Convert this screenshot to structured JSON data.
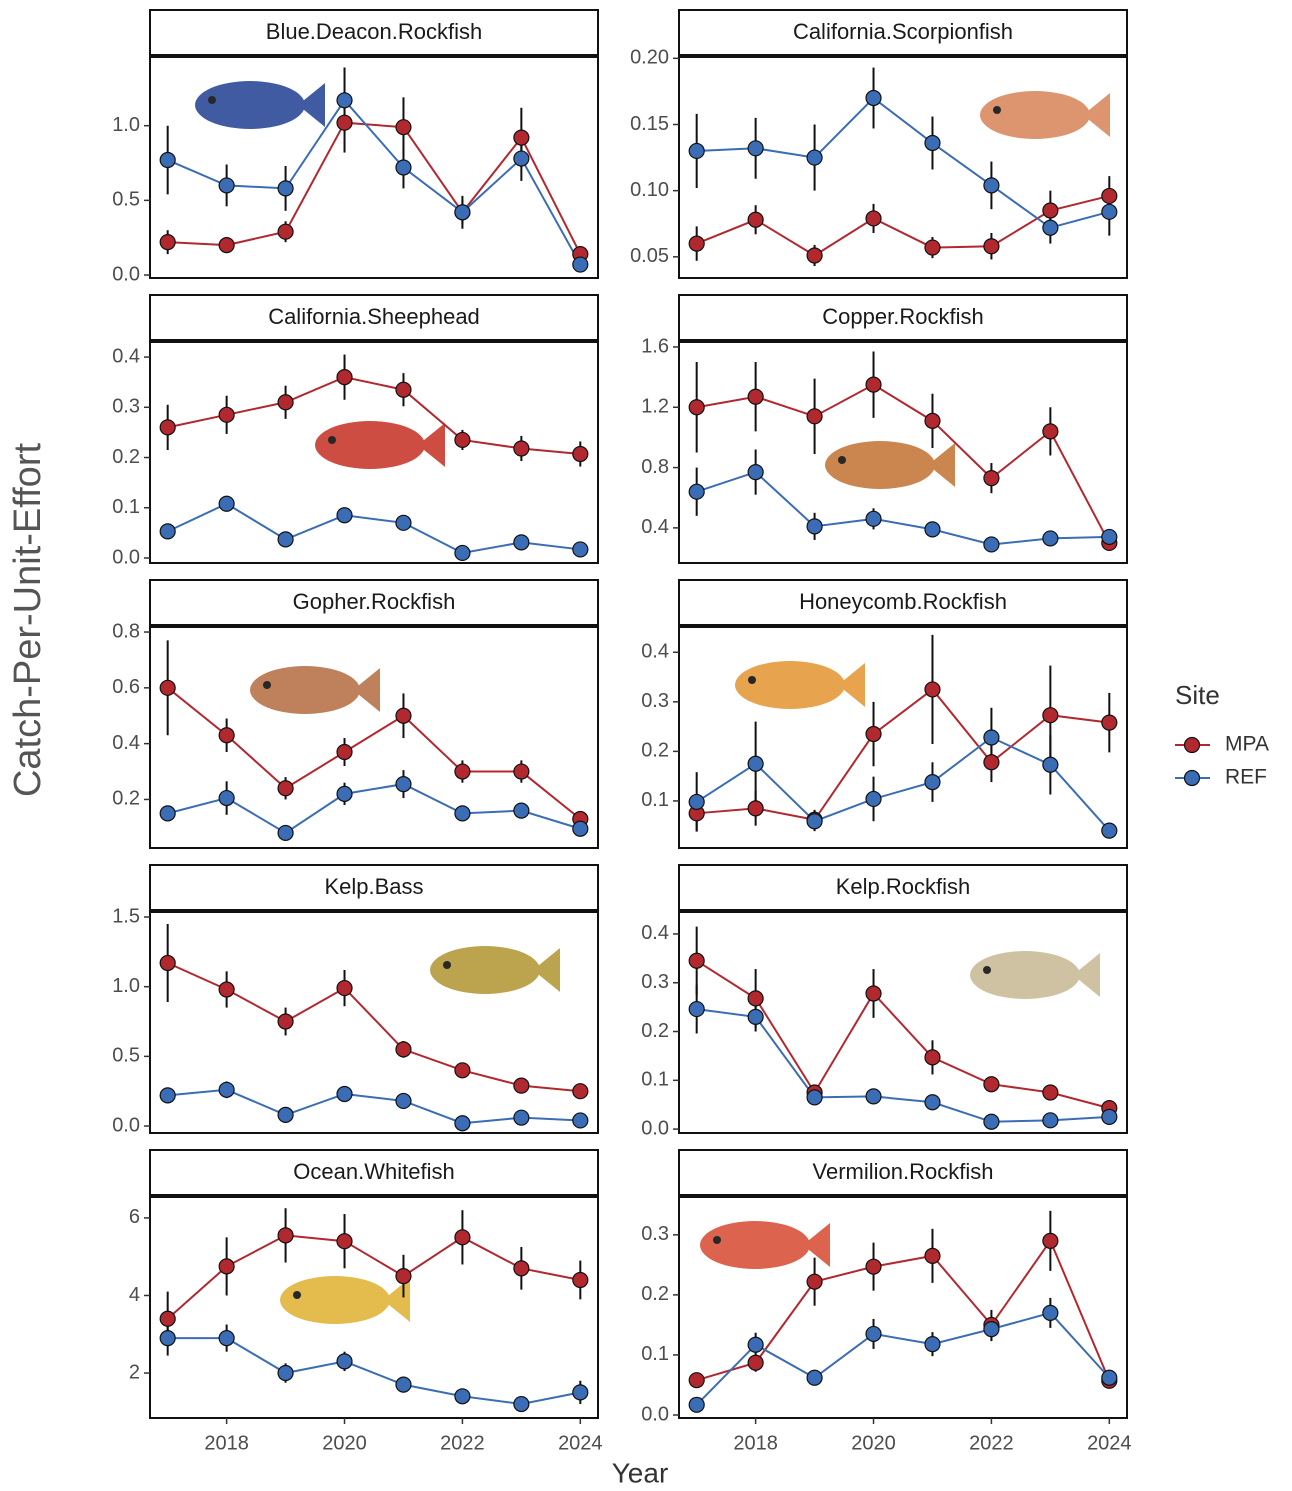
{
  "ylabel": "Catch-Per-Unit-Effort",
  "xlabel": "Year",
  "legend_title": "Site",
  "chart_data": [
    {
      "type": "line",
      "title": "Blue.Deacon.Rockfish",
      "x": [
        2017,
        2018,
        2019,
        2020,
        2021,
        2022,
        2023,
        2024
      ],
      "xlim": [
        2016.7,
        2024.3
      ],
      "ylim": [
        -0.02,
        1.46
      ],
      "yticks": [
        {
          "value": 0,
          "label": "0.0"
        },
        0.5,
        {
          "value": 1,
          "label": "1.0"
        }
      ],
      "series": [
        {
          "name": "MPA",
          "color": "#b2282f",
          "values": [
            0.22,
            0.2,
            0.29,
            1.02,
            0.99,
            0.42,
            0.92,
            0.14
          ],
          "errors": [
            0.08,
            0.03,
            0.07,
            0.2,
            0.2,
            0.08,
            0.2,
            0.04
          ]
        },
        {
          "name": "REF",
          "color": "#3a6db5",
          "values": [
            0.77,
            0.6,
            0.58,
            1.17,
            0.72,
            0.42,
            0.78,
            0.07
          ],
          "errors": [
            0.23,
            0.14,
            0.15,
            0.22,
            0.14,
            0.11,
            0.15,
            0.03
          ]
        }
      ]
    },
    {
      "type": "line",
      "title": "California.Scorpionfish",
      "x": [
        2017,
        2018,
        2019,
        2020,
        2021,
        2022,
        2023,
        2024
      ],
      "xlim": [
        2016.7,
        2024.3
      ],
      "ylim": [
        0.034,
        0.201
      ],
      "yticks": [
        0.05,
        {
          "value": 0.1,
          "label": "0.10"
        },
        0.15,
        {
          "value": 0.2,
          "label": "0.20"
        }
      ],
      "series": [
        {
          "name": "MPA",
          "color": "#b2282f",
          "values": [
            0.06,
            0.078,
            0.051,
            0.079,
            0.057,
            0.058,
            0.085,
            0.096
          ],
          "errors": [
            0.013,
            0.011,
            0.008,
            0.011,
            0.008,
            0.01,
            0.015,
            0.015
          ]
        },
        {
          "name": "REF",
          "color": "#3a6db5",
          "values": [
            0.13,
            0.132,
            0.125,
            0.17,
            0.136,
            0.104,
            0.072,
            0.084
          ],
          "errors": [
            0.028,
            0.023,
            0.025,
            0.023,
            0.02,
            0.018,
            0.012,
            0.018
          ]
        }
      ]
    },
    {
      "type": "line",
      "title": "California.Sheephead",
      "x": [
        2017,
        2018,
        2019,
        2020,
        2021,
        2022,
        2023,
        2024
      ],
      "xlim": [
        2016.7,
        2024.3
      ],
      "ylim": [
        -0.01,
        0.43
      ],
      "yticks": [
        {
          "value": 0,
          "label": "0.0"
        },
        0.1,
        0.2,
        0.3,
        0.4
      ],
      "series": [
        {
          "name": "MPA",
          "color": "#b2282f",
          "values": [
            0.26,
            0.285,
            0.31,
            0.36,
            0.335,
            0.235,
            0.218,
            0.207
          ],
          "errors": [
            0.045,
            0.038,
            0.033,
            0.045,
            0.033,
            0.02,
            0.025,
            0.025
          ]
        },
        {
          "name": "REF",
          "color": "#3a6db5",
          "values": [
            0.053,
            0.108,
            0.037,
            0.085,
            0.07,
            0.01,
            0.031,
            0.017
          ],
          "errors": [
            0.005,
            0.008,
            0.005,
            0.008,
            0.007,
            0.004,
            0.005,
            0.004
          ]
        }
      ]
    },
    {
      "type": "line",
      "title": "Copper.Rockfish",
      "x": [
        2017,
        2018,
        2019,
        2020,
        2021,
        2022,
        2023,
        2024
      ],
      "xlim": [
        2016.7,
        2024.3
      ],
      "ylim": [
        0.167,
        1.633
      ],
      "yticks": [
        0.4,
        0.8,
        1.2,
        1.6
      ],
      "series": [
        {
          "name": "MPA",
          "color": "#b2282f",
          "values": [
            1.2,
            1.27,
            1.14,
            1.35,
            1.11,
            0.73,
            1.04,
            0.3
          ],
          "errors": [
            0.3,
            0.23,
            0.25,
            0.22,
            0.18,
            0.1,
            0.16,
            0.04
          ]
        },
        {
          "name": "REF",
          "color": "#3a6db5",
          "values": [
            0.64,
            0.77,
            0.41,
            0.46,
            0.39,
            0.29,
            0.33,
            0.34
          ],
          "errors": [
            0.16,
            0.15,
            0.09,
            0.07,
            0.05,
            0.04,
            0.04,
            0.05
          ]
        }
      ]
    },
    {
      "type": "line",
      "title": "Gopher.Rockfish",
      "x": [
        2017,
        2018,
        2019,
        2020,
        2021,
        2022,
        2023,
        2024
      ],
      "xlim": [
        2016.7,
        2024.3
      ],
      "ylim": [
        0.026,
        0.818
      ],
      "yticks": [
        0.2,
        0.4,
        0.6,
        0.8
      ],
      "series": [
        {
          "name": "MPA",
          "color": "#b2282f",
          "values": [
            0.6,
            0.43,
            0.24,
            0.37,
            0.5,
            0.3,
            0.3,
            0.13
          ],
          "errors": [
            0.17,
            0.06,
            0.04,
            0.05,
            0.08,
            0.04,
            0.04,
            0.02
          ]
        },
        {
          "name": "REF",
          "color": "#3a6db5",
          "values": [
            0.15,
            0.205,
            0.08,
            0.22,
            0.255,
            0.15,
            0.16,
            0.095
          ],
          "errors": [
            0.02,
            0.06,
            0.02,
            0.04,
            0.05,
            0.02,
            0.02,
            0.02
          ]
        }
      ]
    },
    {
      "type": "line",
      "title": "Honeycomb.Rockfish",
      "x": [
        2017,
        2018,
        2019,
        2020,
        2021,
        2022,
        2023,
        2024
      ],
      "xlim": [
        2016.7,
        2024.3
      ],
      "ylim": [
        0.005,
        0.451
      ],
      "yticks": [
        0.1,
        0.2,
        0.3,
        0.4
      ],
      "series": [
        {
          "name": "MPA",
          "color": "#b2282f",
          "values": [
            0.075,
            0.085,
            0.062,
            0.235,
            0.325,
            0.178,
            0.273,
            0.258
          ],
          "errors": [
            0.035,
            0.035,
            0.02,
            0.065,
            0.11,
            0.04,
            0.1,
            0.06
          ]
        },
        {
          "name": "REF",
          "color": "#3a6db5",
          "values": [
            0.098,
            0.175,
            0.059,
            0.104,
            0.138,
            0.228,
            0.173,
            0.04
          ],
          "errors": [
            0.06,
            0.085,
            0.02,
            0.045,
            0.04,
            0.06,
            0.06,
            0.008
          ]
        }
      ]
    },
    {
      "type": "line",
      "title": "Kelp.Bass",
      "x": [
        2017,
        2018,
        2019,
        2020,
        2021,
        2022,
        2023,
        2024
      ],
      "xlim": [
        2016.7,
        2024.3
      ],
      "ylim": [
        -0.05,
        1.536
      ],
      "yticks": [
        {
          "value": 0,
          "label": "0.0"
        },
        0.5,
        {
          "value": 1,
          "label": "1.0"
        },
        1.5
      ],
      "series": [
        {
          "name": "MPA",
          "color": "#b2282f",
          "values": [
            1.17,
            0.98,
            0.75,
            0.99,
            0.55,
            0.4,
            0.29,
            0.25
          ],
          "errors": [
            0.28,
            0.13,
            0.1,
            0.13,
            0.06,
            0.04,
            0.04,
            0.03
          ]
        },
        {
          "name": "REF",
          "color": "#3a6db5",
          "values": [
            0.22,
            0.26,
            0.08,
            0.23,
            0.18,
            0.02,
            0.06,
            0.04
          ],
          "errors": [
            0.05,
            0.06,
            0.03,
            0.05,
            0.04,
            0.01,
            0.02,
            0.01
          ]
        }
      ]
    },
    {
      "type": "line",
      "title": "Kelp.Rockfish",
      "x": [
        2017,
        2018,
        2019,
        2020,
        2021,
        2022,
        2023,
        2024
      ],
      "xlim": [
        2016.7,
        2024.3
      ],
      "ylim": [
        -0.008,
        0.445
      ],
      "yticks": [
        {
          "value": 0,
          "label": "0.0"
        },
        0.1,
        0.2,
        0.3,
        0.4
      ],
      "series": [
        {
          "name": "MPA",
          "color": "#b2282f",
          "values": [
            0.345,
            0.268,
            0.075,
            0.278,
            0.147,
            0.092,
            0.075,
            0.043
          ],
          "errors": [
            0.07,
            0.06,
            0.015,
            0.05,
            0.035,
            0.015,
            0.01,
            0.006
          ]
        },
        {
          "name": "REF",
          "color": "#3a6db5",
          "values": [
            0.246,
            0.23,
            0.065,
            0.067,
            0.055,
            0.015,
            0.018,
            0.025
          ],
          "errors": [
            0.05,
            0.03,
            0.015,
            0.012,
            0.012,
            0.004,
            0.005,
            0.004
          ]
        }
      ]
    },
    {
      "type": "line",
      "title": "Ocean.Whitefish",
      "x": [
        2017,
        2018,
        2019,
        2020,
        2021,
        2022,
        2023,
        2024
      ],
      "xlim": [
        2016.7,
        2024.3
      ],
      "xticks": [
        2018,
        2020,
        2022,
        2024
      ],
      "ylim": [
        0.84,
        6.54
      ],
      "yticks": [
        2,
        4,
        6
      ],
      "series": [
        {
          "name": "MPA",
          "color": "#b2282f",
          "values": [
            3.4,
            4.75,
            5.55,
            5.4,
            4.5,
            5.5,
            4.7,
            4.4
          ],
          "errors": [
            0.7,
            0.75,
            0.7,
            0.7,
            0.55,
            0.7,
            0.55,
            0.5
          ]
        },
        {
          "name": "REF",
          "color": "#3a6db5",
          "values": [
            2.9,
            2.9,
            2.0,
            2.3,
            1.7,
            1.4,
            1.2,
            1.5
          ],
          "errors": [
            0.45,
            0.35,
            0.25,
            0.25,
            0.2,
            0.15,
            0.15,
            0.3
          ]
        }
      ]
    },
    {
      "type": "line",
      "title": "Vermilion.Rockfish",
      "x": [
        2017,
        2018,
        2019,
        2020,
        2021,
        2022,
        2023,
        2024
      ],
      "xlim": [
        2016.7,
        2024.3
      ],
      "xticks": [
        2018,
        2020,
        2022,
        2024
      ],
      "ylim": [
        -0.005,
        0.363
      ],
      "yticks": [
        {
          "value": 0,
          "label": "0.0"
        },
        0.1,
        0.2,
        0.3
      ],
      "series": [
        {
          "name": "MPA",
          "color": "#b2282f",
          "values": [
            0.058,
            0.087,
            0.222,
            0.247,
            0.265,
            0.15,
            0.29,
            0.057
          ],
          "errors": [
            0.01,
            0.015,
            0.04,
            0.04,
            0.045,
            0.025,
            0.05,
            0.008
          ]
        },
        {
          "name": "REF",
          "color": "#3a6db5",
          "values": [
            0.017,
            0.117,
            0.062,
            0.135,
            0.118,
            0.143,
            0.17,
            0.062
          ],
          "errors": [
            0.004,
            0.02,
            0.01,
            0.025,
            0.02,
            0.02,
            0.025,
            0.01
          ]
        }
      ]
    }
  ]
}
